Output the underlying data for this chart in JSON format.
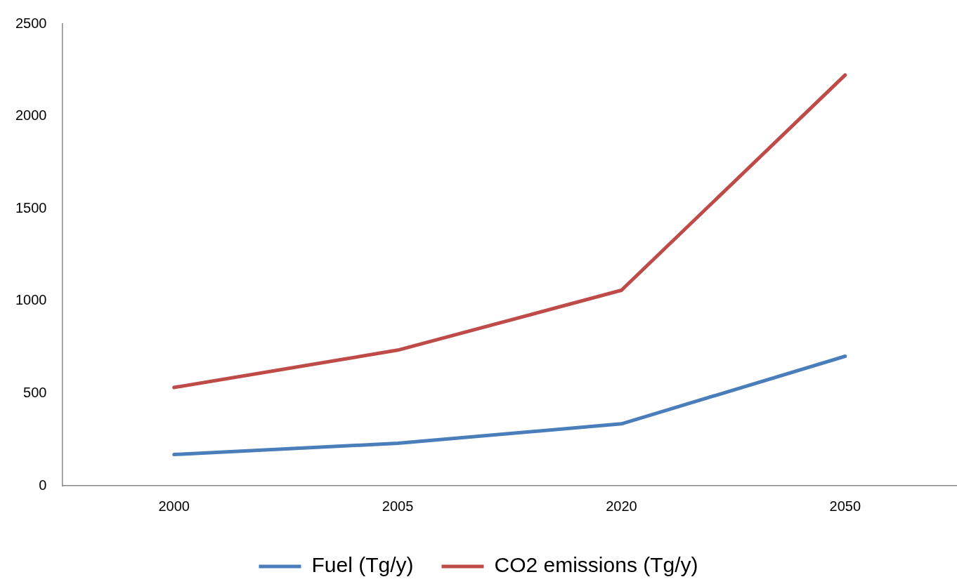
{
  "chart_data": {
    "type": "line",
    "categories": [
      "2000",
      "2005",
      "2020",
      "2050"
    ],
    "series": [
      {
        "name": "Fuel (Tg/y)",
        "color": "#4a7ebb",
        "values": [
          169,
          230,
          335,
          701
        ]
      },
      {
        "name": "CO2 emissions (Tg/y)",
        "color": "#be4b48",
        "values": [
          532,
          734,
          1058,
          2223
        ]
      }
    ],
    "ylim": [
      0,
      2500
    ],
    "yticks": [
      0,
      500,
      1000,
      1500,
      2000,
      2500
    ],
    "grid": false,
    "legend": "bottom",
    "marker": "none",
    "line_style": "solid"
  }
}
